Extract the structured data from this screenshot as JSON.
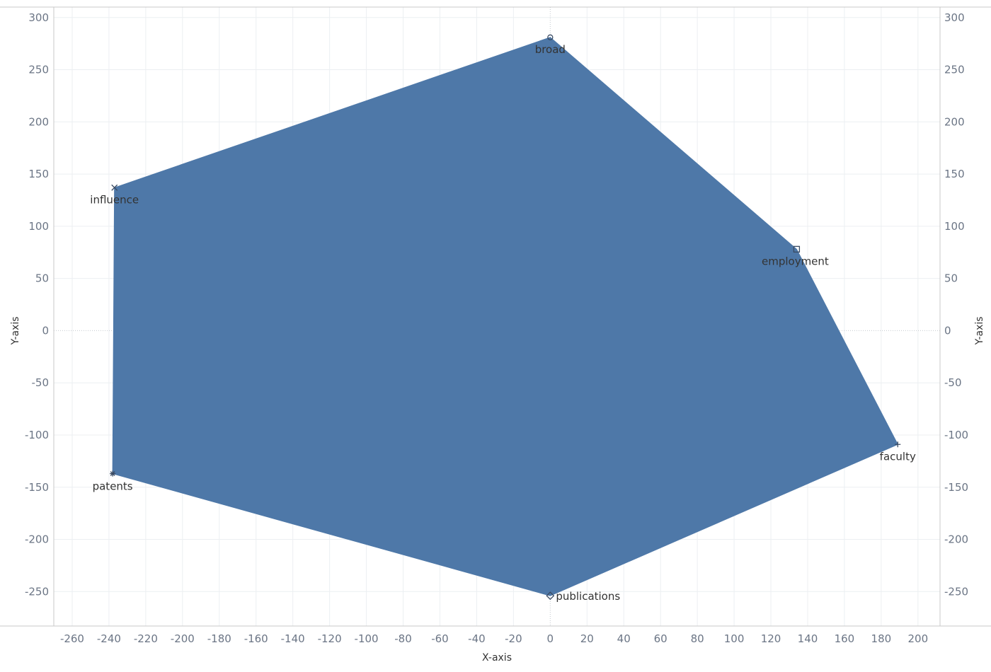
{
  "chart_data": {
    "type": "area",
    "xlabel": "X-axis",
    "ylabel": "Y-axis",
    "y2label": "Y-axis",
    "xlim": [
      -270,
      212
    ],
    "ylim": [
      -283,
      310
    ],
    "x_ticks": [
      -260,
      -240,
      -220,
      -200,
      -180,
      -160,
      -140,
      -120,
      -100,
      -80,
      -60,
      -40,
      -20,
      0,
      20,
      40,
      60,
      80,
      100,
      120,
      140,
      160,
      180,
      200
    ],
    "y_ticks": [
      300,
      250,
      200,
      150,
      100,
      50,
      0,
      -50,
      -100,
      -150,
      -200,
      -250
    ],
    "grid": true,
    "fill_color": "#4e78a8",
    "points": [
      {
        "label": "broad",
        "x": 0,
        "y": 281,
        "marker": "circle"
      },
      {
        "label": "employment",
        "x": 134,
        "y": 78,
        "marker": "square"
      },
      {
        "label": "faculty",
        "x": 189,
        "y": -109,
        "marker": "plus"
      },
      {
        "label": "publications",
        "x": 0,
        "y": -254,
        "marker": "diamond"
      },
      {
        "label": "patents",
        "x": -238,
        "y": -137,
        "marker": "star"
      },
      {
        "label": "influence",
        "x": -237,
        "y": 137,
        "marker": "x"
      }
    ]
  }
}
